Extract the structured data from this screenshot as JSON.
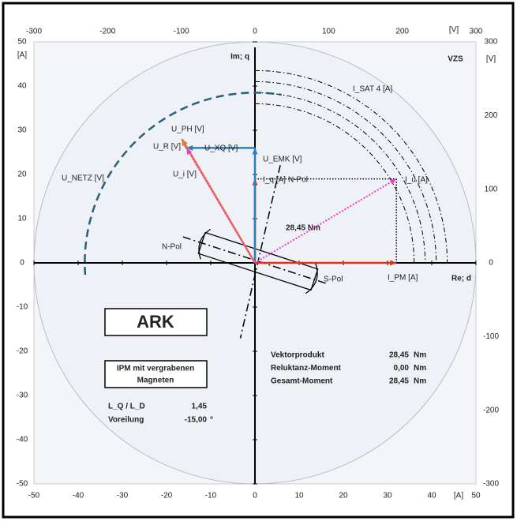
{
  "chart_data": {
    "type": "phasor",
    "xlabel": "Re; d",
    "ylabel": "Im; q",
    "x_unit": "[A]",
    "y_unit": "[A]",
    "x2_unit": "[V]",
    "y2_unit": "[V]",
    "corner_label": "VZS",
    "xlim": [
      -50,
      50
    ],
    "xticks": [
      -50,
      -40,
      -30,
      -20,
      -10,
      0,
      10,
      20,
      30,
      40,
      50
    ],
    "ylim": [
      -50,
      50
    ],
    "yticks": [
      -50,
      -40,
      -30,
      -20,
      -10,
      0,
      10,
      20,
      30,
      40,
      50
    ],
    "x2lim": [
      -300,
      300
    ],
    "x2ticks": [
      -300,
      -200,
      -100,
      0,
      100,
      200,
      300
    ],
    "y2lim": [
      -300,
      300
    ],
    "y2ticks": [
      -300,
      -200,
      -100,
      0,
      100,
      200,
      300
    ],
    "vectors": [
      {
        "name": "I_PM [A]",
        "color": "#d9331f",
        "style": "solid",
        "x": [
          0,
          32
        ],
        "y": [
          0,
          0
        ]
      },
      {
        "name": "I_q [A]",
        "color": "#d9331f",
        "style": "solid",
        "x": [
          0,
          0
        ],
        "y": [
          0,
          19
        ]
      },
      {
        "name": "I_u [A]",
        "color": "#f03cc8",
        "style": "dotted",
        "x": [
          0,
          32
        ],
        "y": [
          0,
          19
        ]
      },
      {
        "name": "U_EMK [V]",
        "color": "#2e7fb8",
        "style": "solid",
        "x": [
          0,
          0
        ],
        "y": [
          0,
          26
        ]
      },
      {
        "name": "U_XQ [V]",
        "color": "#2e7fb8",
        "style": "solid",
        "x": [
          0,
          -15.5
        ],
        "y": [
          26,
          26
        ]
      },
      {
        "name": "U_R [V]",
        "color": "#7b3fa0",
        "style": "solid",
        "x": [
          -15.5,
          -16.5
        ],
        "y": [
          26,
          28
        ]
      },
      {
        "name": "U_PH [V]",
        "color": "#e8772a",
        "style": "solid",
        "x": [
          0,
          -16.5
        ],
        "y": [
          0,
          28
        ]
      },
      {
        "name": "U_i [V]",
        "color": "#f03cc8",
        "style": "dotted",
        "x": [
          0,
          -15.5
        ],
        "y": [
          0,
          26
        ]
      }
    ],
    "saturation": {
      "name": "I_SAT 4 [A]",
      "radii": [
        36,
        38.5,
        41,
        43.5
      ]
    },
    "netz": {
      "name": "U_NETZ [V]",
      "radius": 38.5,
      "angles": [
        184,
        81
      ]
    },
    "torque_label": "28,45  Nm",
    "q_pole_label": "N-Pol",
    "rotor": {
      "n_pole": "N-Pol",
      "s_pole": "S-Pol"
    }
  },
  "panel": {
    "title": "ARK",
    "subtitle": [
      "IPM mit vergrabenen",
      "Magneten"
    ],
    "params": [
      [
        "L_Q / L_D",
        "1,45",
        ""
      ],
      [
        "Voreilung",
        "-15,00",
        "°"
      ]
    ],
    "results": [
      [
        "Vektorprodukt",
        "28,45",
        "Nm"
      ],
      [
        "Reluktanz-Moment",
        "0,00",
        "Nm"
      ],
      [
        "Gesamt-Moment",
        "28,45",
        "Nm"
      ]
    ]
  }
}
